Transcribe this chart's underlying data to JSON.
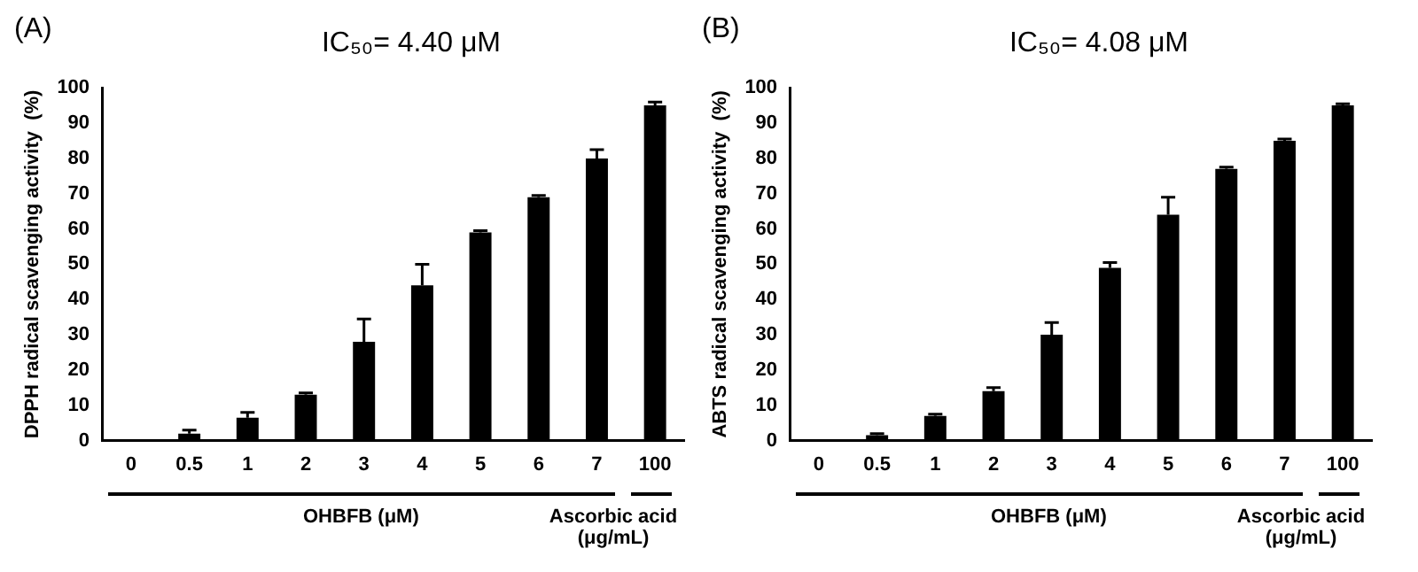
{
  "chart_data": [
    {
      "type": "bar",
      "title": "IC₅₀= 4.40 μM",
      "ylabel": "DPPH radical scavenging activity  (%)",
      "categories": [
        "0",
        "0.5",
        "1",
        "2",
        "3",
        "4",
        "5",
        "6",
        "7",
        "100"
      ],
      "color": "#000000",
      "values": [
        0,
        2,
        6.5,
        13,
        28,
        44,
        59,
        69,
        80,
        95
      ],
      "errors": [
        null,
        1,
        1.5,
        0.5,
        6.5,
        6,
        0.5,
        0.5,
        2.5,
        1
      ],
      "ylim": [
        0,
        100
      ],
      "yticks": [
        0,
        10,
        20,
        30,
        40,
        50,
        60,
        70,
        80,
        90,
        100
      ],
      "grid": false,
      "legend": false,
      "annotations": [
        "(A)",
        "OHBFB (μM)",
        "Ascorbic acid (μg/mL)"
      ]
    },
    {
      "type": "bar",
      "title": "IC₅₀= 4.08 μM",
      "ylabel": "ABTS radical scavenging activity  (%)",
      "categories": [
        "0",
        "0.5",
        "1",
        "2",
        "3",
        "4",
        "5",
        "6",
        "7",
        "100"
      ],
      "color": "#000000",
      "values": [
        0,
        1.5,
        7,
        14,
        30,
        49,
        64,
        77,
        85,
        95
      ],
      "errors": [
        null,
        0.5,
        0.5,
        1,
        3.5,
        1.5,
        5,
        0.5,
        0.5,
        0.5
      ],
      "ylim": [
        0,
        100
      ],
      "yticks": [
        0,
        10,
        20,
        30,
        40,
        50,
        60,
        70,
        80,
        90,
        100
      ],
      "grid": false,
      "legend": false,
      "annotations": [
        "(B)",
        "OHBFB (μM)",
        "Ascorbic acid (μg/mL)"
      ]
    }
  ]
}
